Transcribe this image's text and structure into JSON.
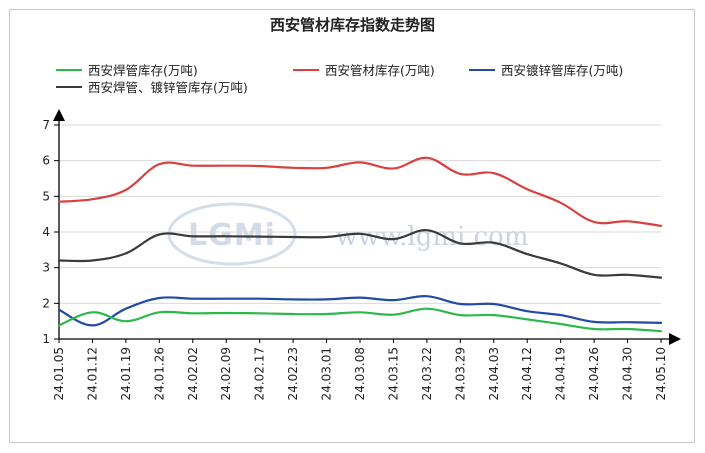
{
  "chart_data": {
    "type": "line",
    "title": "西安管材库存指数走势图",
    "categories": [
      "24.01.05",
      "24.01.12",
      "24.01.19",
      "24.01.26",
      "24.02.02",
      "24.02.09",
      "24.02.17",
      "24.02.23",
      "24.03.01",
      "24.03.08",
      "24.03.15",
      "24.03.22",
      "24.03.29",
      "24.04.03",
      "24.04.12",
      "24.04.19",
      "24.04.26",
      "24.04.30",
      "24.05.10"
    ],
    "ylim": [
      1,
      7
    ],
    "yticks": [
      1,
      2,
      3,
      4,
      5,
      6,
      7
    ],
    "grid": true,
    "legend_position": "top",
    "watermark": {
      "logo": "LGMi",
      "url": "www.lgmi.com"
    },
    "series": [
      {
        "name": "西安焊管库存(万吨)",
        "color": "#2db84c",
        "values": [
          1.38,
          1.75,
          1.5,
          1.75,
          1.72,
          1.73,
          1.72,
          1.7,
          1.7,
          1.75,
          1.68,
          1.85,
          1.67,
          1.67,
          1.55,
          1.42,
          1.28,
          1.28,
          1.22
        ]
      },
      {
        "name": "西安管材库存(万吨)",
        "color": "#d94141",
        "values": [
          4.85,
          4.92,
          5.18,
          5.9,
          5.86,
          5.86,
          5.85,
          5.8,
          5.8,
          5.95,
          5.78,
          6.08,
          5.63,
          5.65,
          5.2,
          4.82,
          4.28,
          4.3,
          4.17
        ]
      },
      {
        "name": "西安镀锌管库存(万吨)",
        "color": "#2449a8",
        "values": [
          1.82,
          1.38,
          1.85,
          2.15,
          2.13,
          2.13,
          2.13,
          2.11,
          2.11,
          2.16,
          2.09,
          2.2,
          1.98,
          1.98,
          1.78,
          1.67,
          1.48,
          1.47,
          1.45
        ]
      },
      {
        "name": "西安焊管、镀锌管库存(万吨)",
        "color": "#3a3a3a",
        "values": [
          3.2,
          3.2,
          3.4,
          3.93,
          3.88,
          3.88,
          3.87,
          3.86,
          3.86,
          3.95,
          3.8,
          4.05,
          3.68,
          3.7,
          3.38,
          3.12,
          2.8,
          2.8,
          2.72
        ]
      }
    ]
  }
}
